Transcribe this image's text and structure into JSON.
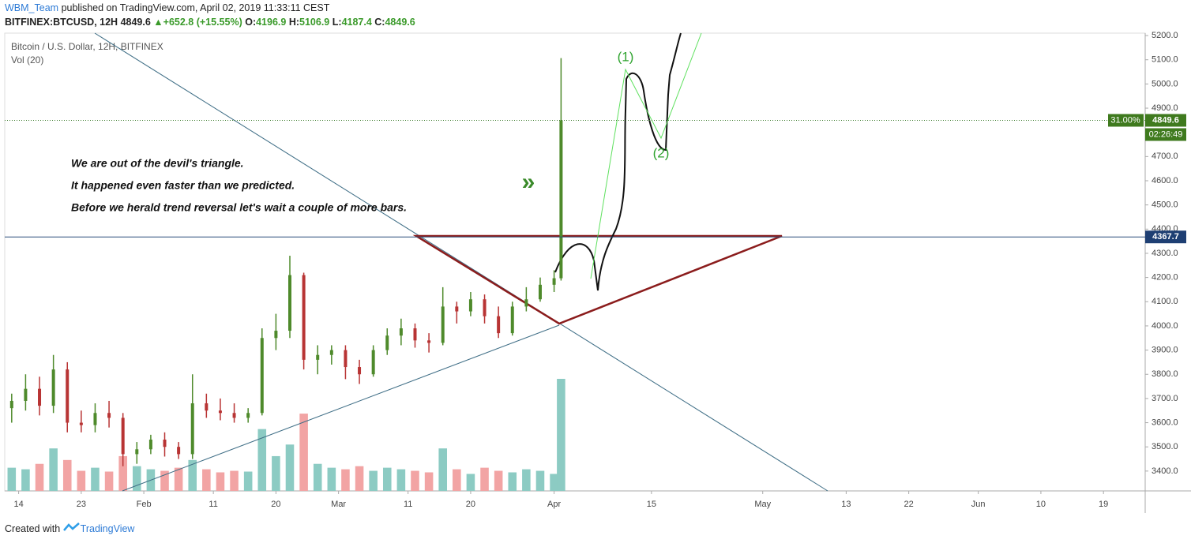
{
  "header": {
    "author": "WBM_Team",
    "published": "published on TradingView.com, April 02, 2019 11:33:11 CEST",
    "symbol": "BITFINEX:BTCUSD, 12H",
    "change": "+652.8 (+15.55%)",
    "ohlc_labels": [
      "O:",
      "H:",
      "L:",
      "C:"
    ]
  },
  "footer": {
    "created": "Created with",
    "brand": "TradingView"
  },
  "chart_data": {
    "type": "candlestick",
    "title": "Bitcoin / U.S. Dollar, 12H, BITFINEX",
    "volume_label": "Vol (20)",
    "x": [
      -1,
      1,
      3,
      5,
      7,
      9,
      11,
      13,
      15,
      17,
      19,
      21,
      23,
      25,
      27,
      29,
      31,
      33,
      35,
      37,
      39,
      41,
      43,
      45,
      47,
      49,
      51,
      53,
      55,
      57,
      59,
      61,
      63,
      65,
      67,
      69,
      71,
      73,
      75,
      77,
      78
    ],
    "open": [
      3660,
      3690,
      3740,
      3670,
      3820,
      3600,
      3590,
      3640,
      3620,
      3470,
      3490,
      3530,
      3500,
      3470,
      3680,
      3650,
      3640,
      3620,
      3640,
      3950,
      3980,
      4210,
      3860,
      3880,
      3900,
      3830,
      3800,
      3900,
      3960,
      3990,
      3940,
      3930,
      4080,
      4060,
      4110,
      4040,
      3970,
      4080,
      4110,
      4170,
      4196.9
    ],
    "high": [
      3720,
      3800,
      3790,
      3880,
      3850,
      3650,
      3680,
      3690,
      3640,
      3520,
      3550,
      3560,
      3520,
      3800,
      3720,
      3700,
      3680,
      3660,
      3990,
      4050,
      4290,
      4220,
      3920,
      3920,
      3920,
      3860,
      3920,
      3990,
      4030,
      4010,
      3970,
      4160,
      4100,
      4140,
      4130,
      4080,
      4100,
      4160,
      4200,
      4230,
      5106.9
    ],
    "low": [
      3600,
      3650,
      3630,
      3640,
      3560,
      3560,
      3560,
      3580,
      3420,
      3430,
      3470,
      3460,
      3450,
      3450,
      3620,
      3610,
      3600,
      3600,
      3630,
      3900,
      3950,
      3820,
      3800,
      3840,
      3780,
      3760,
      3790,
      3880,
      3920,
      3910,
      3890,
      3920,
      4010,
      4040,
      4010,
      3950,
      3960,
      4060,
      4100,
      4140,
      4187.4
    ],
    "close": [
      3690,
      3740,
      3670,
      3820,
      3600,
      3590,
      3640,
      3620,
      3470,
      3490,
      3530,
      3500,
      3470,
      3680,
      3650,
      3640,
      3620,
      3640,
      3950,
      3980,
      4210,
      3860,
      3880,
      3900,
      3830,
      3800,
      3900,
      3960,
      3990,
      3940,
      3930,
      4080,
      4060,
      4110,
      4040,
      3970,
      4080,
      4110,
      4170,
      4197,
      4849.6
    ],
    "volume": [
      30,
      28,
      35,
      55,
      40,
      26,
      30,
      25,
      45,
      32,
      28,
      26,
      30,
      40,
      28,
      24,
      26,
      25,
      80,
      45,
      60,
      100,
      35,
      30,
      28,
      32,
      26,
      30,
      28,
      26,
      24,
      55,
      28,
      22,
      30,
      26,
      24,
      28,
      26,
      22,
      145
    ],
    "up_color": "#4e8a2b",
    "down_color": "#b83434",
    "volume_up_color": "#8ccbc3",
    "volume_down_color": "#f2a4a4",
    "xlim": [
      -2,
      162
    ],
    "ylim": [
      3318,
      5210
    ],
    "xticks": [
      {
        "value": 0,
        "label": "14"
      },
      {
        "value": 9,
        "label": "23"
      },
      {
        "value": 18,
        "label": "Feb"
      },
      {
        "value": 28,
        "label": "11"
      },
      {
        "value": 37,
        "label": "20"
      },
      {
        "value": 46,
        "label": "Mar"
      },
      {
        "value": 56,
        "label": "11"
      },
      {
        "value": 65,
        "label": "20"
      },
      {
        "value": 77,
        "label": "Apr"
      },
      {
        "value": 91,
        "label": "15"
      },
      {
        "value": 107,
        "label": "May"
      },
      {
        "value": 119,
        "label": "13"
      },
      {
        "value": 128,
        "label": "22"
      },
      {
        "value": 138,
        "label": "Jun"
      },
      {
        "value": 147,
        "label": "10"
      },
      {
        "value": 156,
        "label": "19"
      }
    ],
    "yticks": [
      {
        "value": 3400,
        "label": "3400.0"
      },
      {
        "value": 3500,
        "label": "3500.0"
      },
      {
        "value": 3600,
        "label": "3600.0"
      },
      {
        "value": 3700,
        "label": "3700.0"
      },
      {
        "value": 3800,
        "label": "3800.0"
      },
      {
        "value": 3900,
        "label": "3900.0"
      },
      {
        "value": 4000,
        "label": "4000.0"
      },
      {
        "value": 4100,
        "label": "4100.0"
      },
      {
        "value": 4200,
        "label": "4200.0"
      },
      {
        "value": 4300,
        "label": "4300.0"
      },
      {
        "value": 4400,
        "label": "4400.0"
      },
      {
        "value": 4500,
        "label": "4500.0"
      },
      {
        "value": 4600,
        "label": "4600.0"
      },
      {
        "value": 4700,
        "label": "4700.0"
      },
      {
        "value": 4800,
        "label": "4800.0"
      },
      {
        "value": 4900,
        "label": "4900.0"
      },
      {
        "value": 5000,
        "label": "5000.0"
      },
      {
        "value": 5100,
        "label": "5100.0"
      },
      {
        "value": 5200,
        "label": "5200.0"
      }
    ],
    "last_price": 4849.6,
    "last_price_pct": "31.00%",
    "countdown": "02:26:49",
    "horizontal_line": 4367.7,
    "annotations": [
      "We are out of the devil's triangle.",
      "It happened even faster than we predicted.",
      "Before we herald trend reversal let's wait a couple of more bars."
    ],
    "wave_labels": [
      "(1)",
      "(2)"
    ],
    "arrow": "»"
  }
}
